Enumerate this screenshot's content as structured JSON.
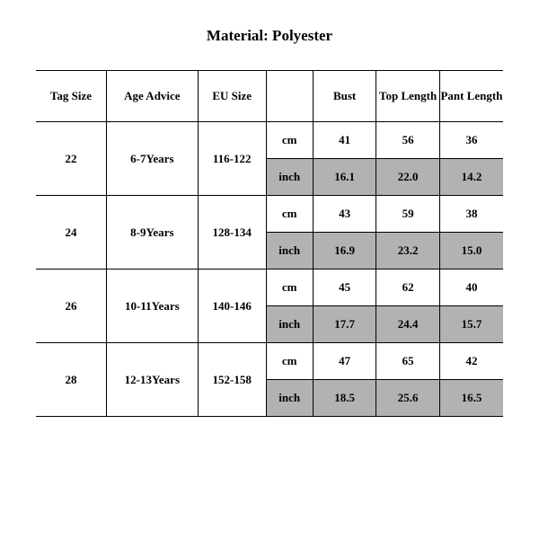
{
  "title": "Material: Polyester",
  "headers": {
    "tag": "Tag Size",
    "age": "Age Advice",
    "eu": "EU Size",
    "bust": "Bust",
    "top": "Top Length",
    "pant": "Pant Length"
  },
  "units": {
    "cm": "cm",
    "inch": "inch"
  },
  "rows": [
    {
      "tag": "22",
      "age": "6-7Years",
      "eu": "116-122",
      "cm": {
        "bust": "41",
        "top": "56",
        "pant": "36"
      },
      "in": {
        "bust": "16.1",
        "top": "22.0",
        "pant": "14.2"
      }
    },
    {
      "tag": "24",
      "age": "8-9Years",
      "eu": "128-134",
      "cm": {
        "bust": "43",
        "top": "59",
        "pant": "38"
      },
      "in": {
        "bust": "16.9",
        "top": "23.2",
        "pant": "15.0"
      }
    },
    {
      "tag": "26",
      "age": "10-11Years",
      "eu": "140-146",
      "cm": {
        "bust": "45",
        "top": "62",
        "pant": "40"
      },
      "in": {
        "bust": "17.7",
        "top": "24.4",
        "pant": "15.7"
      }
    },
    {
      "tag": "28",
      "age": "12-13Years",
      "eu": "152-158",
      "cm": {
        "bust": "47",
        "top": "65",
        "pant": "42"
      },
      "in": {
        "bust": "18.5",
        "top": "25.6",
        "pant": "16.5"
      }
    }
  ],
  "style": {
    "shade_color": "#b2b2b2",
    "border_color": "#000000",
    "background": "#ffffff",
    "font_family": "Times New Roman",
    "title_fontsize": 17,
    "cell_fontsize": 13
  }
}
